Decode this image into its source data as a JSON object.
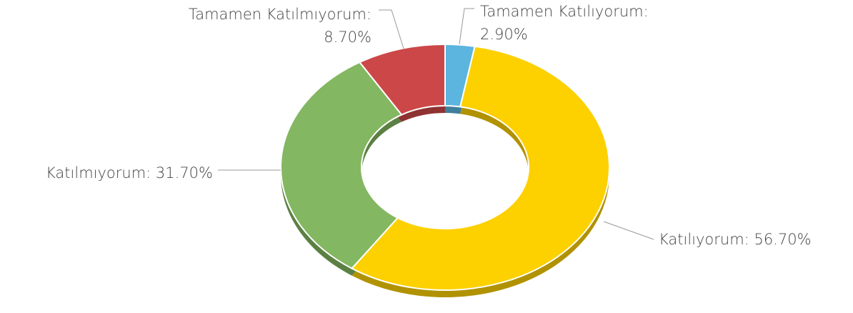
{
  "chart_data": {
    "type": "pie",
    "donut": true,
    "three_d": true,
    "categories": [
      "Tamamen Katılıyorum:",
      "Katılıyorum:",
      "Katılmıyorum:",
      "Tamamen Katılmıyorum:"
    ],
    "values": [
      2.9,
      56.7,
      31.7,
      8.7
    ],
    "value_labels": [
      "2.90%",
      "56.70%",
      "31.70%",
      "8.70%"
    ],
    "colors": [
      "#5bb5de",
      "#fdd000",
      "#84b761",
      "#cc4748"
    ]
  }
}
